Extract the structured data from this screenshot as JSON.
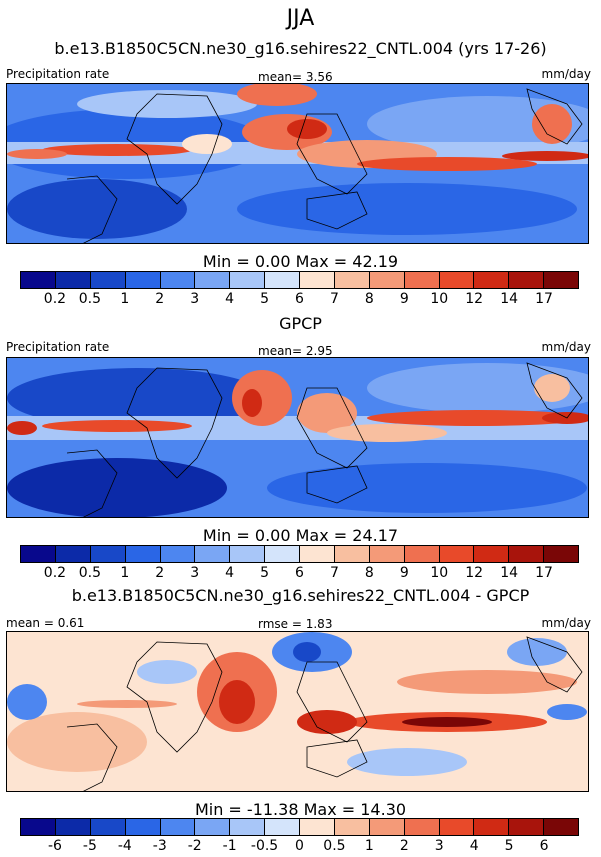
{
  "main_title": "JJA",
  "panels": [
    {
      "title": "b.e13.B1850C5CN.ne30_g16.sehires22_CNTL.004 (yrs 17-26)",
      "left_label": "Precipitation rate",
      "center_label": "mean=   3.56",
      "right_label": "mm/day",
      "minmax": "Min =   0.00 Max =  42.19",
      "colorbar_ticks": [
        "0.2",
        "0.5",
        "1",
        "2",
        "3",
        "4",
        "5",
        "6",
        "7",
        "8",
        "9",
        "10",
        "12",
        "14",
        "17"
      ]
    },
    {
      "title": "GPCP",
      "left_label": "Precipitation rate",
      "center_label": "mean=   2.95",
      "right_label": "mm/day",
      "minmax": "Min =   0.00 Max =  24.17",
      "colorbar_ticks": [
        "0.2",
        "0.5",
        "1",
        "2",
        "3",
        "4",
        "5",
        "6",
        "7",
        "8",
        "9",
        "10",
        "12",
        "14",
        "17"
      ]
    },
    {
      "title": "b.e13.B1850C5CN.ne30_g16.sehires22_CNTL.004 - GPCP",
      "left_label": "mean =   0.61",
      "center_label": "rmse =   1.83",
      "right_label": "mm/day",
      "minmax": "Min = -11.38 Max =  14.30",
      "colorbar_ticks": [
        "-6",
        "-5",
        "-4",
        "-3",
        "-2",
        "-1",
        "-0.5",
        "0",
        "0.5",
        "1",
        "2",
        "3",
        "4",
        "5",
        "6"
      ]
    }
  ],
  "colors": {
    "precip_scale": [
      "#08088c",
      "#0c2aa8",
      "#1848c8",
      "#2a66e6",
      "#4d86f0",
      "#7aa6f4",
      "#a8c6f8",
      "#d4e4fb",
      "#fde4d2",
      "#f8bfa0",
      "#f49a78",
      "#ef7050",
      "#e84a2a",
      "#d02a14",
      "#a8140c",
      "#7a0606"
    ],
    "diff_scale": [
      "#08088c",
      "#0c2aa8",
      "#1848c8",
      "#2a66e6",
      "#4d86f0",
      "#7aa6f4",
      "#a8c6f8",
      "#d4e4fb",
      "#fde4d2",
      "#f8bfa0",
      "#f49a78",
      "#ef7050",
      "#e84a2a",
      "#d02a14",
      "#a8140c",
      "#7a0606"
    ]
  },
  "chart_data": [
    {
      "type": "heatmap",
      "title": "b.e13.B1850C5CN.ne30_g16.sehires22_CNTL.004 (yrs 17-26)",
      "variable": "Precipitation rate",
      "units": "mm/day",
      "season": "JJA",
      "mean": 3.56,
      "min": 0.0,
      "max": 42.19,
      "contour_levels": [
        0.2,
        0.5,
        1,
        2,
        3,
        4,
        5,
        6,
        7,
        8,
        9,
        10,
        12,
        14,
        17
      ]
    },
    {
      "type": "heatmap",
      "title": "GPCP",
      "variable": "Precipitation rate",
      "units": "mm/day",
      "season": "JJA",
      "mean": 2.95,
      "min": 0.0,
      "max": 24.17,
      "contour_levels": [
        0.2,
        0.5,
        1,
        2,
        3,
        4,
        5,
        6,
        7,
        8,
        9,
        10,
        12,
        14,
        17
      ]
    },
    {
      "type": "heatmap",
      "title": "b.e13.B1850C5CN.ne30_g16.sehires22_CNTL.004 - GPCP",
      "units": "mm/day",
      "season": "JJA",
      "mean": 0.61,
      "rmse": 1.83,
      "min": -11.38,
      "max": 14.3,
      "contour_levels": [
        -6,
        -5,
        -4,
        -3,
        -2,
        -1,
        -0.5,
        0,
        0.5,
        1,
        2,
        3,
        4,
        5,
        6
      ]
    }
  ]
}
